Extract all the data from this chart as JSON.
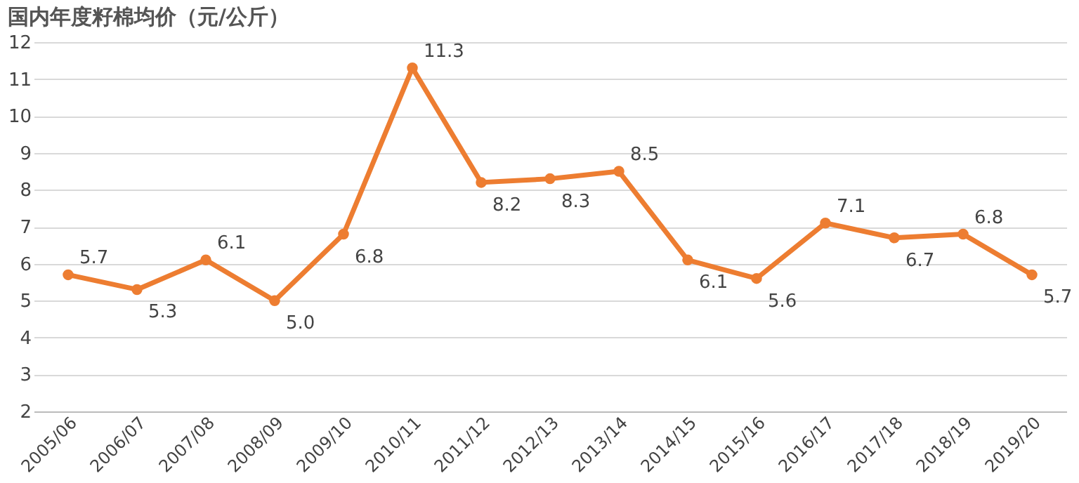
{
  "chart_data": {
    "type": "line",
    "title": "国内年度籽棉均价（元/公斤）",
    "categories": [
      "2005/06",
      "2006/07",
      "2007/08",
      "2008/09",
      "2009/10",
      "2010/11",
      "2011/12",
      "2012/13",
      "2013/14",
      "2014/15",
      "2015/16",
      "2016/17",
      "2017/18",
      "2018/19",
      "2019/20"
    ],
    "series": [
      {
        "color": "#ed7d31",
        "values": [
          5.7,
          5.3,
          6.1,
          5.0,
          6.8,
          11.3,
          8.2,
          8.3,
          8.5,
          6.1,
          5.6,
          7.1,
          6.7,
          6.8,
          5.7
        ]
      }
    ],
    "ylim": [
      2,
      12
    ],
    "yticks": [
      2,
      3,
      4,
      5,
      6,
      7,
      8,
      9,
      10,
      11,
      12
    ],
    "grid": "y",
    "marker": "circle",
    "line_style": "solid",
    "value_labels": [
      "5.7",
      "5.3",
      "6.1",
      "5.0",
      "6.8",
      "11.3",
      "8.2",
      "8.3",
      "8.5",
      "6.1",
      "5.6",
      "7.1",
      "6.7",
      "6.8",
      "5.7"
    ]
  }
}
